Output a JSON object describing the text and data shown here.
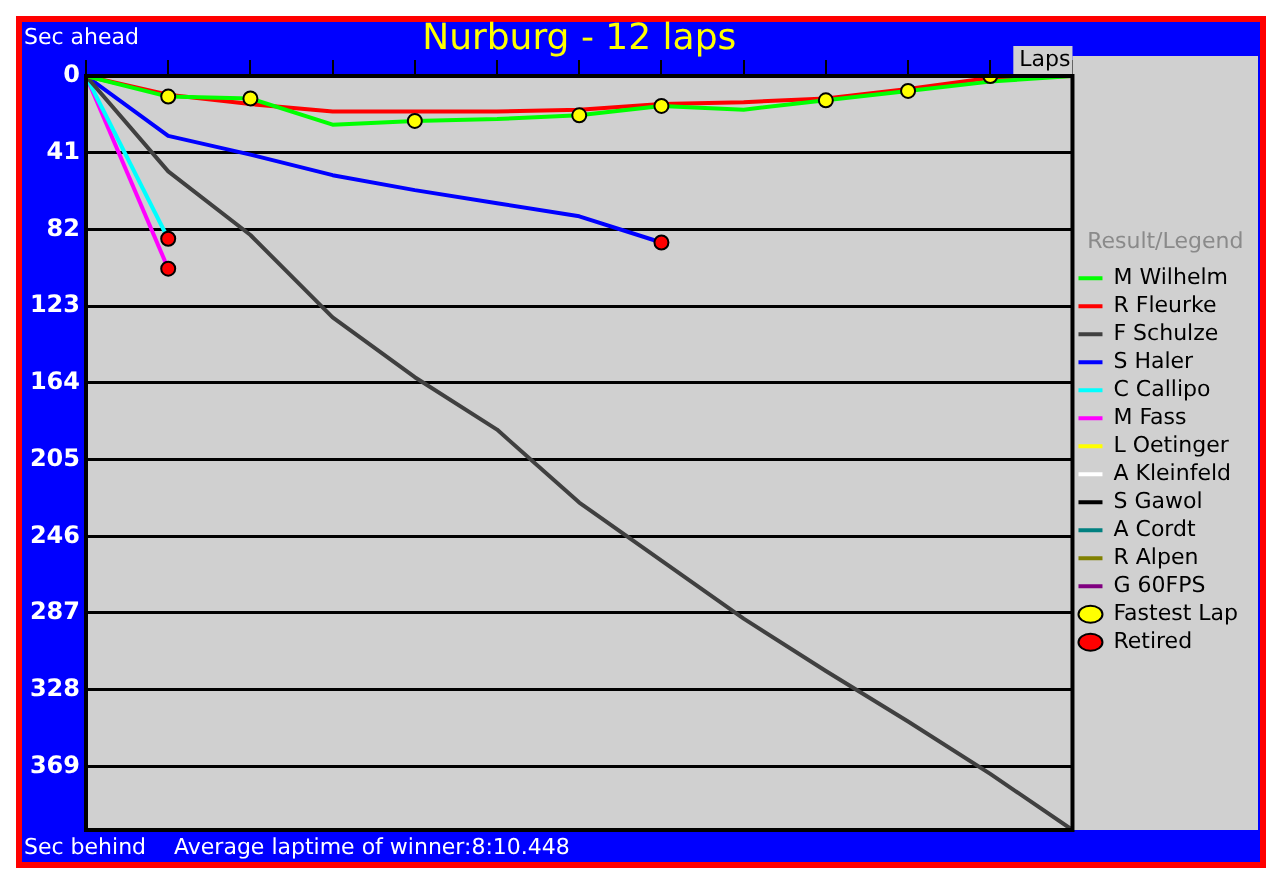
{
  "chart_data": {
    "type": "line",
    "title": "Nurburg - 12 laps",
    "ylabel": "Sec ahead",
    "xlabel": "Laps",
    "legend_title": "Result/Legend",
    "annotations": [
      "Sec behind",
      "Average laptime of winner:8:10.448"
    ],
    "categories": [
      null,
      null,
      null,
      null,
      null,
      null,
      null,
      null,
      null,
      null,
      null,
      null,
      null
    ],
    "series": [
      {
        "name": "M Wilhelm",
        "color": "#00ff00",
        "values": [
          0,
          11,
          12,
          26,
          24,
          23,
          21,
          16,
          18,
          13,
          8,
          3,
          0
        ]
      },
      {
        "name": "R Fleurke",
        "color": "#ff0000",
        "values": [
          0,
          10,
          15,
          19,
          19,
          19,
          18,
          15,
          14,
          12,
          7,
          1,
          0
        ]
      },
      {
        "name": "F Schulze",
        "color": "#404040",
        "values": [
          0,
          51,
          85,
          129,
          161,
          189,
          228,
          259,
          290,
          318,
          345,
          373,
          403
        ]
      },
      {
        "name": "S Haler",
        "color": "#0000ff",
        "values": [
          0,
          32,
          42,
          53,
          61,
          68,
          75,
          89,
          null,
          null,
          null,
          null,
          null
        ]
      },
      {
        "name": "C Callipo",
        "color": "#00ffff",
        "values": [
          0,
          87,
          null,
          null,
          null,
          null,
          null,
          null,
          null,
          null,
          null,
          null,
          null
        ]
      },
      {
        "name": "M Fass",
        "color": "#ff00ff",
        "values": [
          0,
          103,
          null,
          null,
          null,
          null,
          null,
          null,
          null,
          null,
          null,
          null,
          null
        ]
      },
      {
        "name": "L Oetinger",
        "color": "#ffff00",
        "values": [
          null,
          null,
          null,
          null,
          null,
          null,
          null,
          null,
          null,
          null,
          null,
          null,
          null
        ]
      },
      {
        "name": "A Kleinfeld",
        "color": "#ffffff",
        "values": [
          null,
          null,
          null,
          null,
          null,
          null,
          null,
          null,
          null,
          null,
          null,
          null,
          null
        ]
      },
      {
        "name": "S Gawol",
        "color": "#000000",
        "values": [
          null,
          null,
          null,
          null,
          null,
          null,
          null,
          null,
          null,
          null,
          null,
          null,
          null
        ]
      },
      {
        "name": "A Cordt",
        "color": "#008080",
        "values": [
          null,
          null,
          null,
          null,
          null,
          null,
          null,
          null,
          null,
          null,
          null,
          null,
          null
        ]
      },
      {
        "name": "R Alpen",
        "color": "#808000",
        "values": [
          null,
          null,
          null,
          null,
          null,
          null,
          null,
          null,
          null,
          null,
          null,
          null,
          null
        ]
      },
      {
        "name": "G 60FPS",
        "color": "#800080",
        "values": [
          null,
          null,
          null,
          null,
          null,
          null,
          null,
          null,
          null,
          null,
          null,
          null,
          null
        ]
      },
      {
        "name": "Fastest Lap",
        "type": "scatter",
        "marker": "circle",
        "color": "#ffff00",
        "values": [
          null,
          11,
          12,
          null,
          24,
          null,
          21,
          16,
          null,
          13,
          8,
          0,
          null
        ]
      },
      {
        "name": "Retired",
        "type": "scatter",
        "marker": "circle",
        "color": "#ff0000",
        "values": [
          null,
          87,
          null,
          null,
          null,
          null,
          null,
          89,
          null,
          null,
          null,
          null,
          null
        ]
      },
      {
        "type": "scatter",
        "marker": "circle",
        "color": "#ff0000",
        "values": [
          null,
          103,
          null,
          null,
          null,
          null,
          null,
          null,
          null,
          null,
          null,
          null,
          null
        ]
      }
    ],
    "ylim": [
      403,
      0
    ],
    "yticks": [
      0,
      41,
      82,
      123,
      164,
      205,
      246,
      287,
      328,
      369
    ],
    "tick_labels": "y",
    "grid": "y",
    "legend": "right"
  }
}
